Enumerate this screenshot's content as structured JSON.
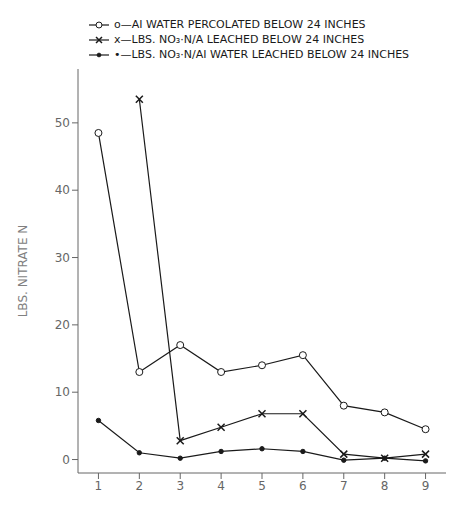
{
  "chart_data": {
    "type": "line",
    "y_label": "LBS. NITRATE N",
    "x": [
      1,
      2,
      3,
      4,
      5,
      6,
      7,
      8,
      9
    ],
    "series": [
      {
        "name": "o—AI WATER PERCOLATED BELOW 24 INCHES",
        "color": "#1a1a1a",
        "marker": "circle",
        "values": [
          48.5,
          13.0,
          17.0,
          13.0,
          14.0,
          15.5,
          8.0,
          7.0,
          4.5
        ]
      },
      {
        "name": "x—LBS. NO₃·N/A LEACHED BELOW 24 INCHES",
        "color": "#1a1a1a",
        "marker": "x",
        "values": [
          null,
          53.5,
          2.8,
          4.8,
          6.8,
          6.8,
          0.8,
          0.2,
          0.8
        ]
      },
      {
        "name": "•—LBS. NO₃·N/AI WATER LEACHED BELOW 24 INCHES",
        "color": "#1a1a1a",
        "marker": "dot",
        "values": [
          5.8,
          1.0,
          0.2,
          1.2,
          1.6,
          1.2,
          -0.1,
          0.2,
          -0.2
        ]
      }
    ],
    "xlim": [
      0.5,
      9.5
    ],
    "ylim": [
      -2,
      58
    ],
    "xticks": [
      1,
      2,
      3,
      4,
      5,
      6,
      7,
      8,
      9
    ],
    "yticks": [
      0,
      10,
      20,
      30,
      40,
      50
    ],
    "grid": false,
    "legend": "top"
  }
}
